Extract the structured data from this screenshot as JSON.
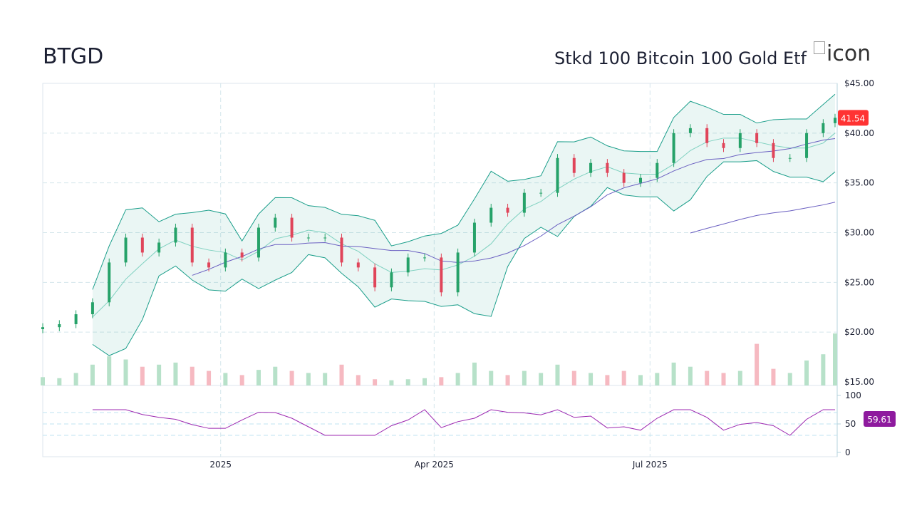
{
  "header": {
    "ticker": "BTGD",
    "name": "Stkd 100 Bitcoin 100 Gold Etf",
    "logo_alt": "icon"
  },
  "colors": {
    "up": "#26a269",
    "down": "#e0455a",
    "band": "#1a9e8a",
    "sma_mid": "#7fd1c0",
    "sma_long": "#6a5fc1",
    "rsi": "#9c27b0",
    "last_price_bg": "#ff3333",
    "rsi_bg": "#8e1a9e"
  },
  "chart_data": {
    "type": "candlestick",
    "price_axis": {
      "min": 15,
      "max": 45,
      "ticks": [
        "$45.00",
        "$40.00",
        "$35.00",
        "$30.00",
        "$25.00",
        "$20.00",
        "$15.00"
      ],
      "tick_values": [
        45,
        40,
        35,
        30,
        25,
        20,
        15
      ]
    },
    "time_axis": {
      "ticks": [
        {
          "label": "2025",
          "date": "2025-01-01"
        },
        {
          "label": "Apr 2025",
          "date": "2025-04-01"
        },
        {
          "label": "Jul 2025",
          "date": "2025-07-01"
        }
      ],
      "range": [
        "2024-10-18",
        "2025-09-17"
      ]
    },
    "last_price": "41.54",
    "rsi": {
      "last": "59.61",
      "ticks": [
        "100",
        "50",
        "0"
      ],
      "tick_values": [
        100,
        50,
        0
      ],
      "levels": [
        70,
        50,
        30
      ]
    },
    "dates": [
      "2024-10-18",
      "2024-10-25",
      "2024-11-01",
      "2024-11-08",
      "2024-11-15",
      "2024-11-22",
      "2024-11-29",
      "2024-12-06",
      "2024-12-13",
      "2024-12-20",
      "2024-12-27",
      "2025-01-03",
      "2025-01-10",
      "2025-01-17",
      "2025-01-24",
      "2025-01-31",
      "2025-02-07",
      "2025-02-14",
      "2025-02-21",
      "2025-02-28",
      "2025-03-07",
      "2025-03-14",
      "2025-03-21",
      "2025-03-28",
      "2025-04-04",
      "2025-04-11",
      "2025-04-18",
      "2025-04-25",
      "2025-05-02",
      "2025-05-09",
      "2025-05-16",
      "2025-05-23",
      "2025-05-30",
      "2025-06-06",
      "2025-06-13",
      "2025-06-20",
      "2025-06-27",
      "2025-07-04",
      "2025-07-11",
      "2025-07-18",
      "2025-07-25",
      "2025-08-01",
      "2025-08-08",
      "2025-08-15",
      "2025-08-22",
      "2025-08-29",
      "2025-09-05",
      "2025-09-12",
      "2025-09-17"
    ],
    "close": [
      20.5,
      20.8,
      21.8,
      23,
      27,
      29.5,
      28,
      29,
      30.5,
      27,
      26.5,
      28,
      27.5,
      30.5,
      31.5,
      29.5,
      29.5,
      29.5,
      27,
      26.5,
      24.5,
      26,
      27.5,
      27.5,
      24,
      28,
      31,
      32.5,
      32,
      34,
      34,
      37.5,
      36,
      37,
      36,
      35,
      35.5,
      37,
      40,
      40.5,
      39,
      38.5,
      40,
      39,
      37.5,
      37.5,
      40,
      41,
      41.54
    ],
    "volume": [
      8,
      7,
      12,
      20,
      28,
      25,
      18,
      20,
      22,
      18,
      14,
      12,
      10,
      15,
      18,
      14,
      12,
      12,
      20,
      10,
      6,
      5,
      6,
      7,
      8,
      12,
      22,
      14,
      10,
      14,
      12,
      20,
      14,
      12,
      10,
      14,
      10,
      12,
      22,
      18,
      14,
      12,
      14,
      40,
      16,
      12,
      24,
      30,
      50
    ]
  }
}
